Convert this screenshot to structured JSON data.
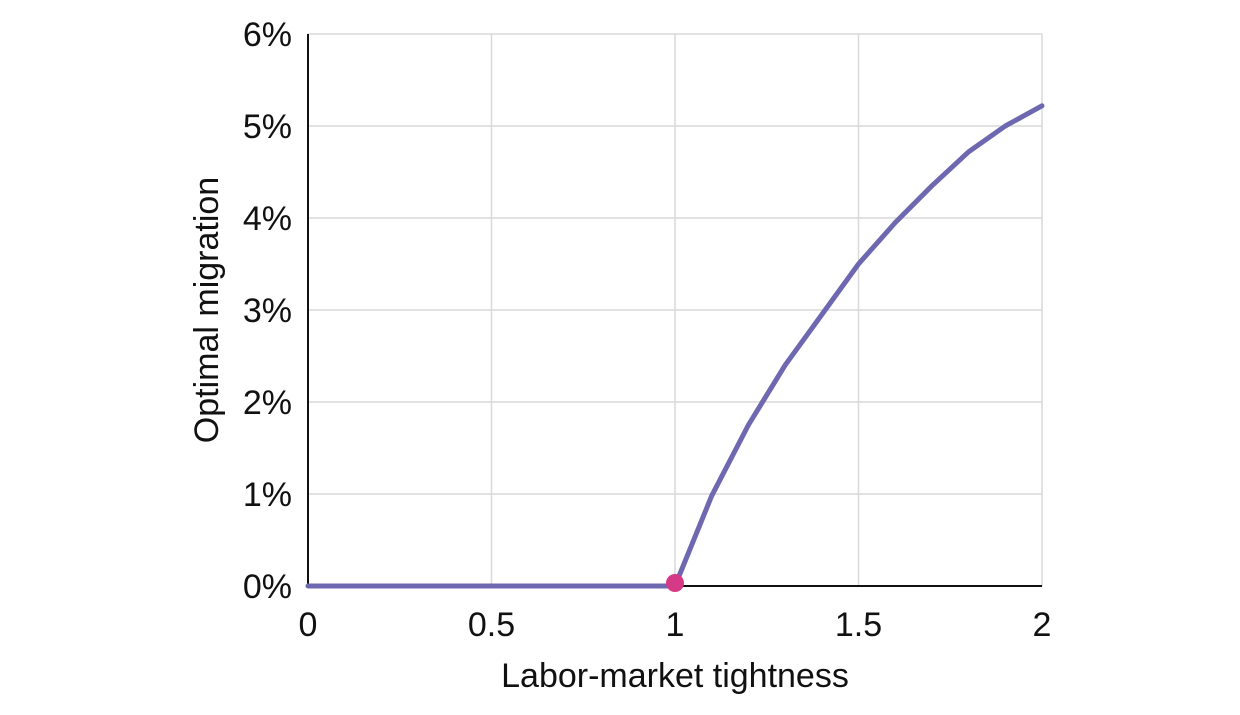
{
  "chart_data": {
    "type": "line",
    "title": "",
    "xlabel": "Labor-market tightness",
    "ylabel": "Optimal migration",
    "xlim": [
      0,
      2
    ],
    "ylim": [
      0,
      6
    ],
    "x_ticks": [
      0,
      0.5,
      1,
      1.5,
      2
    ],
    "x_tick_labels": [
      "0",
      "0.5",
      "1",
      "1.5",
      "2"
    ],
    "y_ticks": [
      0,
      1,
      2,
      3,
      4,
      5,
      6
    ],
    "y_tick_labels": [
      "0%",
      "1%",
      "2%",
      "3%",
      "4%",
      "5%",
      "6%"
    ],
    "grid": true,
    "series": [
      {
        "color": "#6e68b0",
        "x": [
          0,
          0.5,
          1.0,
          1.1,
          1.2,
          1.3,
          1.4,
          1.5,
          1.6,
          1.7,
          1.8,
          1.9,
          2.0
        ],
        "y": [
          0,
          0,
          0,
          0.98,
          1.75,
          2.4,
          2.95,
          3.5,
          3.95,
          4.35,
          4.72,
          5.0,
          5.22
        ]
      }
    ],
    "markers": [
      {
        "x": 1,
        "y": 0,
        "color": "#d63a86"
      }
    ]
  }
}
